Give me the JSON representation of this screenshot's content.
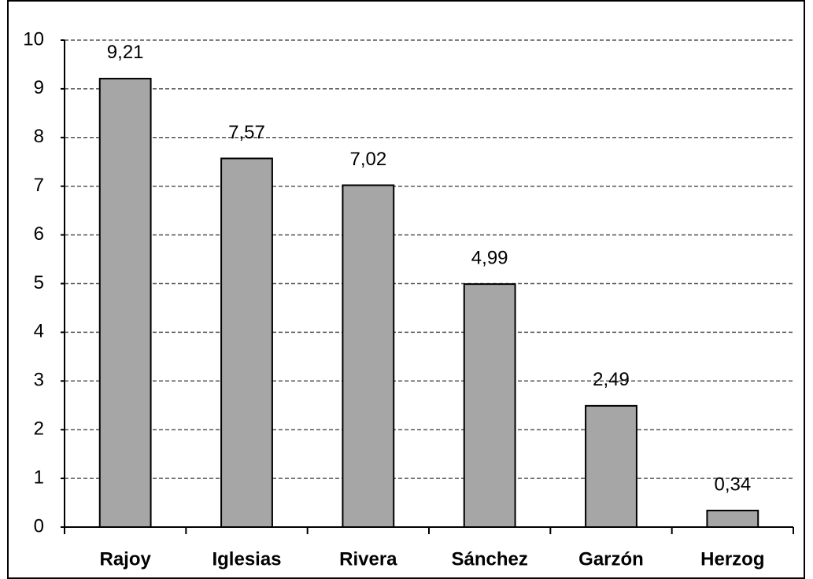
{
  "chart_data": {
    "type": "bar",
    "categories": [
      "Rajoy",
      "Iglesias",
      "Rivera",
      "Sánchez",
      "Garzón",
      "Herzog"
    ],
    "values": [
      9.21,
      7.57,
      7.02,
      4.99,
      2.49,
      0.34
    ],
    "value_labels": [
      "9,21",
      "7,57",
      "7,02",
      "4,99",
      "2,49",
      "0,34"
    ],
    "color": "#a6a6a6",
    "ylim": [
      0,
      10
    ],
    "yticks": [
      0,
      1,
      2,
      3,
      4,
      5,
      6,
      7,
      8,
      9,
      10
    ],
    "grid": true
  }
}
